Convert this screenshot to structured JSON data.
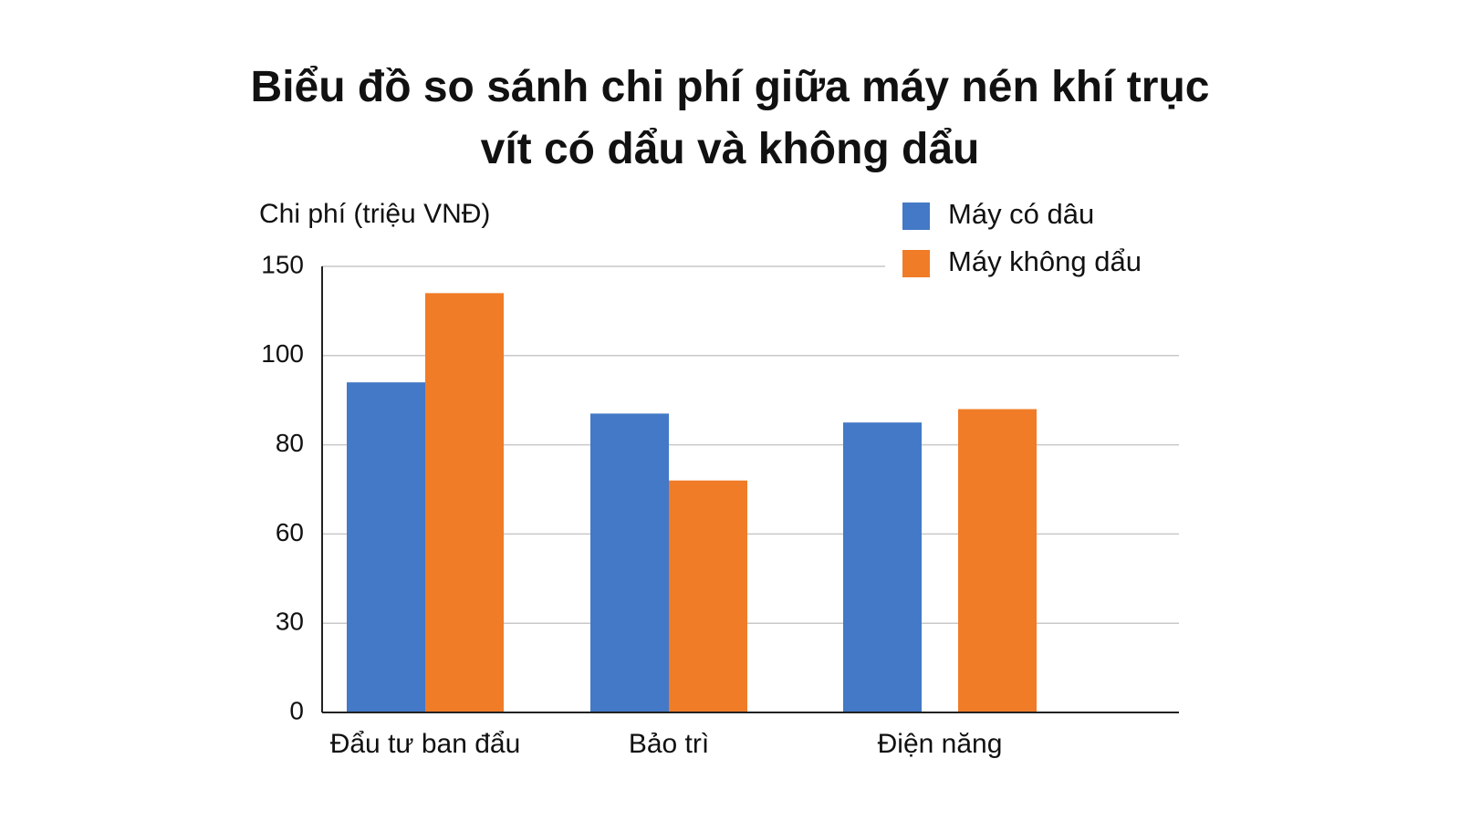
{
  "chart_data": {
    "type": "bar",
    "title": "Biểu đồ so sánh chi phí giữa máy nén khí trục vít có dẩu và không dẩu",
    "ylabel": "Chi phí (triệu VNĐ)",
    "categories": [
      "Đẩu tư ban đẩu",
      "Bảo trì",
      "Điện năng"
    ],
    "series": [
      {
        "name": "Máy có dâu",
        "color": "#4379c6",
        "values": [
          94,
          87,
          85
        ]
      },
      {
        "name": "Máy không dẩu",
        "color": "#f07c28",
        "values": [
          135,
          72,
          88
        ]
      }
    ],
    "ylim": [
      0,
      150
    ],
    "yticks": [
      0,
      30,
      60,
      80,
      100,
      150
    ],
    "grid": true,
    "legend": "top-right"
  }
}
